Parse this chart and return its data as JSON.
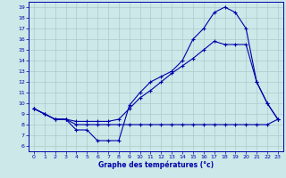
{
  "xlabel": "Graphe des températures (°c)",
  "background_color": "#cce8e8",
  "grid_color": "#aacccc",
  "line_color": "#0000aa",
  "xlim": [
    -0.5,
    23.5
  ],
  "ylim": [
    5.5,
    19.5
  ],
  "xticks": [
    0,
    1,
    2,
    3,
    4,
    5,
    6,
    7,
    8,
    9,
    10,
    11,
    12,
    13,
    14,
    15,
    16,
    17,
    18,
    19,
    20,
    21,
    22,
    23
  ],
  "yticks": [
    6,
    7,
    8,
    9,
    10,
    11,
    12,
    13,
    14,
    15,
    16,
    17,
    18,
    19
  ],
  "line1_x": [
    0,
    1,
    2,
    3,
    4,
    5,
    6,
    7,
    8,
    9,
    10,
    11,
    12,
    13,
    14,
    15,
    16,
    17,
    18,
    19,
    20,
    21,
    22,
    23
  ],
  "line1_y": [
    9.5,
    9.0,
    8.5,
    8.5,
    7.5,
    7.5,
    6.5,
    6.5,
    6.5,
    9.8,
    11.0,
    12.0,
    12.5,
    13.0,
    14.0,
    16.0,
    17.0,
    18.5,
    19.0,
    18.5,
    17.0,
    12.0,
    10.0,
    8.5
  ],
  "line2_x": [
    0,
    1,
    2,
    3,
    4,
    5,
    6,
    7,
    8,
    9,
    10,
    11,
    12,
    13,
    14,
    15,
    16,
    17,
    18,
    19,
    20,
    21,
    22,
    23
  ],
  "line2_y": [
    9.5,
    9.0,
    8.5,
    8.5,
    8.0,
    8.0,
    8.0,
    8.0,
    8.0,
    8.0,
    8.0,
    8.0,
    8.0,
    8.0,
    8.0,
    8.0,
    8.0,
    8.0,
    8.0,
    8.0,
    8.0,
    8.0,
    8.0,
    8.5
  ],
  "line3_x": [
    0,
    1,
    2,
    3,
    4,
    5,
    6,
    7,
    8,
    9,
    10,
    11,
    12,
    13,
    14,
    15,
    16,
    17,
    18,
    19,
    20,
    21,
    22,
    23
  ],
  "line3_y": [
    9.5,
    9.0,
    8.5,
    8.5,
    8.3,
    8.3,
    8.3,
    8.3,
    8.5,
    9.5,
    10.5,
    11.2,
    12.0,
    12.8,
    13.5,
    14.2,
    15.0,
    15.8,
    15.5,
    15.5,
    15.5,
    12.0,
    10.0,
    8.5
  ],
  "figwidth": 3.2,
  "figheight": 2.0,
  "dpi": 100
}
